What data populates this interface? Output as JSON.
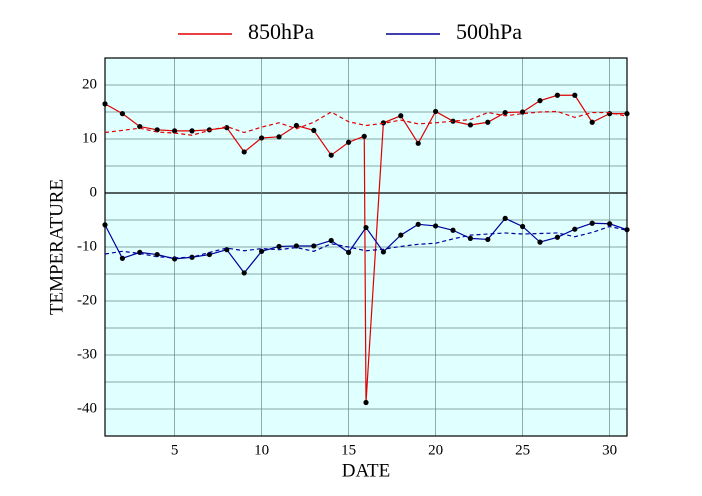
{
  "chart_data": {
    "type": "line",
    "xlabel": "DATE",
    "ylabel": "TEMPERATURE",
    "x": [
      1,
      2,
      3,
      4,
      5,
      6,
      7,
      8,
      9,
      10,
      11,
      12,
      13,
      14,
      15,
      16,
      17,
      18,
      19,
      20,
      21,
      22,
      23,
      24,
      25,
      26,
      27,
      28,
      29,
      30,
      31
    ],
    "series": [
      {
        "name": "850hPa",
        "color": "#e00000",
        "markers": true,
        "dashed": false,
        "x": [
          1,
          2,
          3,
          4,
          5,
          6,
          7,
          8,
          9,
          10,
          11,
          12,
          13,
          14,
          15,
          15.9,
          16,
          17,
          18,
          19,
          20,
          21,
          22,
          23,
          24,
          25,
          26,
          27,
          28,
          29,
          30,
          31
        ],
        "values": [
          16.5,
          14.7,
          12.3,
          11.7,
          11.5,
          11.5,
          11.7,
          12.1,
          7.6,
          10.2,
          10.4,
          12.5,
          11.6,
          7.0,
          9.4,
          10.5,
          -38.8,
          13.0,
          14.3,
          9.2,
          15.1,
          13.3,
          12.6,
          13.1,
          14.9,
          15.0,
          17.1,
          18.1,
          18.1,
          13.1,
          14.7,
          14.7
        ]
      },
      {
        "name": "500hPa",
        "color": "#00009c",
        "markers": true,
        "dashed": false,
        "values": [
          -5.9,
          -12.1,
          -11.0,
          -11.4,
          -12.2,
          -11.9,
          -11.4,
          -10.5,
          -14.8,
          -10.8,
          -9.9,
          -9.8,
          -9.8,
          -8.8,
          -11.0,
          -6.4,
          -10.9,
          -7.8,
          -5.8,
          -6.1,
          -6.9,
          -8.4,
          -8.6,
          -4.7,
          -6.2,
          -9.1,
          -8.2,
          -6.7,
          -5.6,
          -5.7,
          -6.8
        ]
      },
      {
        "color": "#e00000",
        "markers": false,
        "dashed": true,
        "values": [
          11.2,
          11.6,
          12.0,
          11.3,
          11.1,
          10.7,
          11.6,
          12.3,
          11.2,
          12.2,
          13.0,
          11.9,
          13.1,
          15.0,
          13.2,
          12.5,
          12.9,
          13.5,
          12.8,
          13.0,
          13.3,
          13.6,
          14.9,
          14.3,
          14.7,
          15.0,
          15.1,
          14.0,
          14.9,
          14.9,
          14.2
        ]
      },
      {
        "color": "#00009c",
        "markers": false,
        "dashed": true,
        "values": [
          -11.3,
          -10.8,
          -11.2,
          -11.8,
          -12.0,
          -11.9,
          -11.0,
          -10.2,
          -10.7,
          -10.3,
          -10.5,
          -10.1,
          -10.8,
          -9.4,
          -10.0,
          -10.7,
          -10.4,
          -9.9,
          -9.5,
          -9.3,
          -8.5,
          -7.8,
          -7.6,
          -7.4,
          -7.6,
          -7.5,
          -7.4,
          -8.1,
          -7.3,
          -6.2,
          -6.9
        ]
      }
    ],
    "xlim": [
      1,
      31
    ],
    "xticks": [
      5,
      10,
      15,
      20,
      25,
      30
    ],
    "ylim": [
      -45,
      25
    ],
    "yticks": [
      -40,
      -30,
      -20,
      -10,
      0,
      10,
      20
    ],
    "y_minor_grid": [
      -35,
      -25,
      -15,
      -5,
      5,
      15
    ],
    "zero_line": true,
    "grid": true,
    "background": "#e0ffff",
    "legend": "top"
  }
}
